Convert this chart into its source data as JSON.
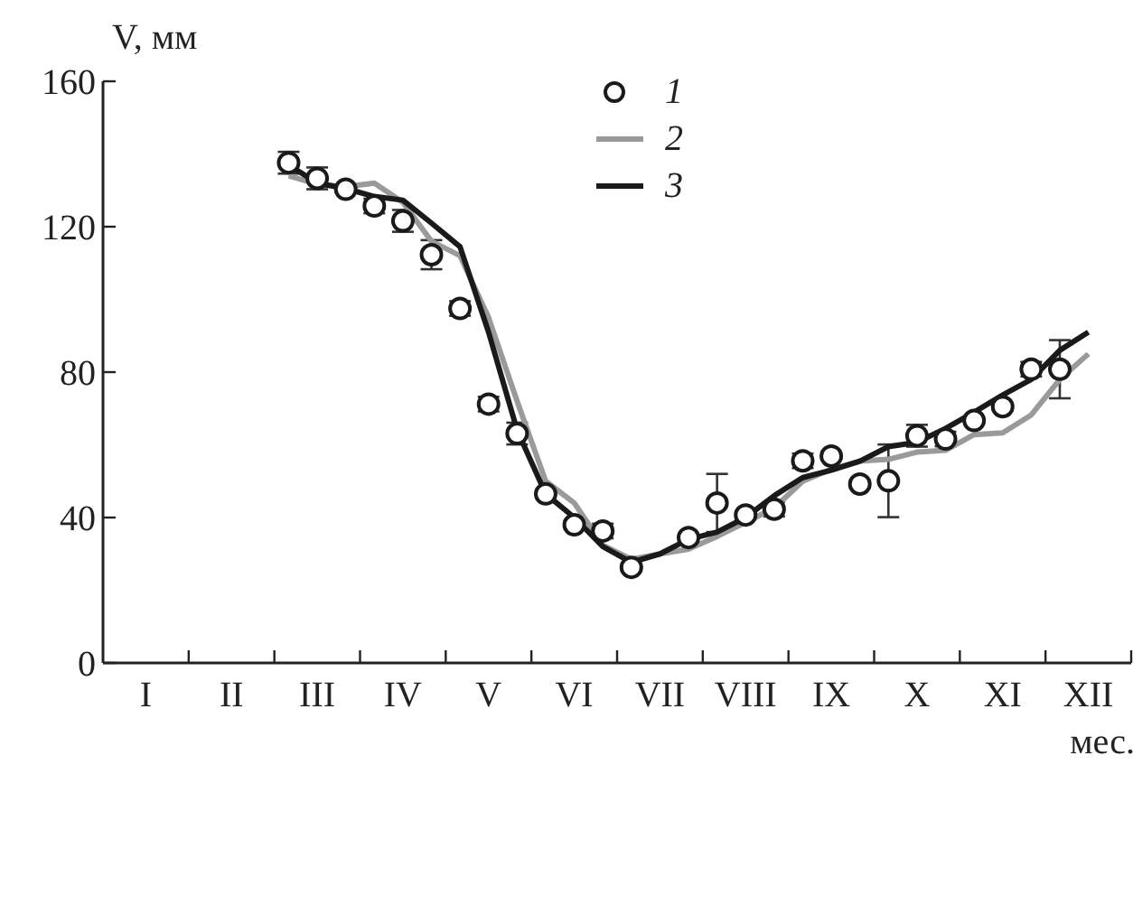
{
  "chart_data": {
    "type": "line",
    "xlabel": "мес.",
    "ylabel": "V, мм",
    "categories": [
      null,
      "I",
      null,
      null,
      "II",
      null,
      null,
      "III",
      null,
      null,
      "IV",
      null,
      null,
      "V",
      null,
      null,
      "VI",
      null,
      null,
      "VII",
      null,
      null,
      "VIII",
      null,
      null,
      "IX",
      null,
      null,
      "X",
      null,
      null,
      "XI",
      null,
      null,
      "XII",
      null
    ],
    "ylim": [
      0,
      160
    ],
    "yticks": [
      0,
      40,
      80,
      120,
      160
    ],
    "grid": false,
    "legend": "top right",
    "series": [
      {
        "name": "1",
        "type": "scatter",
        "marker": "circle",
        "color": "#1a1a1a",
        "values": [
          null,
          null,
          null,
          null,
          null,
          null,
          137.6,
          133.3,
          130.3,
          125.7,
          121.6,
          112.3,
          97.5,
          71.2,
          63.1,
          46.5,
          38,
          36.3,
          26.3,
          null,
          34.5,
          44,
          40.7,
          42.3,
          55.6,
          56.9,
          49.2,
          50.1,
          62.5,
          61.6,
          66.7,
          70.5,
          80.8,
          80.8,
          null,
          null
        ],
        "errors": [
          null,
          null,
          null,
          null,
          null,
          null,
          3,
          3,
          1,
          2,
          3,
          4,
          2,
          2,
          3,
          1,
          1,
          2,
          1,
          null,
          1,
          8,
          1,
          2,
          2,
          1,
          1,
          10,
          3,
          2,
          1,
          1,
          2,
          8,
          null,
          null
        ]
      },
      {
        "name": "2",
        "marker": "none",
        "color": "#9a9a9a",
        "values": [
          null,
          null,
          null,
          null,
          null,
          null,
          134,
          131.7,
          131,
          132,
          126.7,
          116,
          112,
          95,
          72,
          50,
          44,
          32.4,
          28.5,
          30,
          31.3,
          34.8,
          38.7,
          42.6,
          50,
          53.3,
          55.5,
          56,
          58,
          58.5,
          62.8,
          63.3,
          68.2,
          78,
          85,
          null
        ]
      },
      {
        "name": "3",
        "marker": "none",
        "color": "#1a1a1a",
        "values": [
          null,
          null,
          null,
          null,
          null,
          null,
          137,
          132,
          130.5,
          128.3,
          127.3,
          121,
          114.5,
          91,
          64,
          46.5,
          40,
          32,
          27.7,
          30,
          34,
          36,
          40,
          46,
          51,
          53,
          55.5,
          59.5,
          60.7,
          64.5,
          69,
          73.7,
          78,
          86,
          91,
          null
        ]
      }
    ]
  }
}
